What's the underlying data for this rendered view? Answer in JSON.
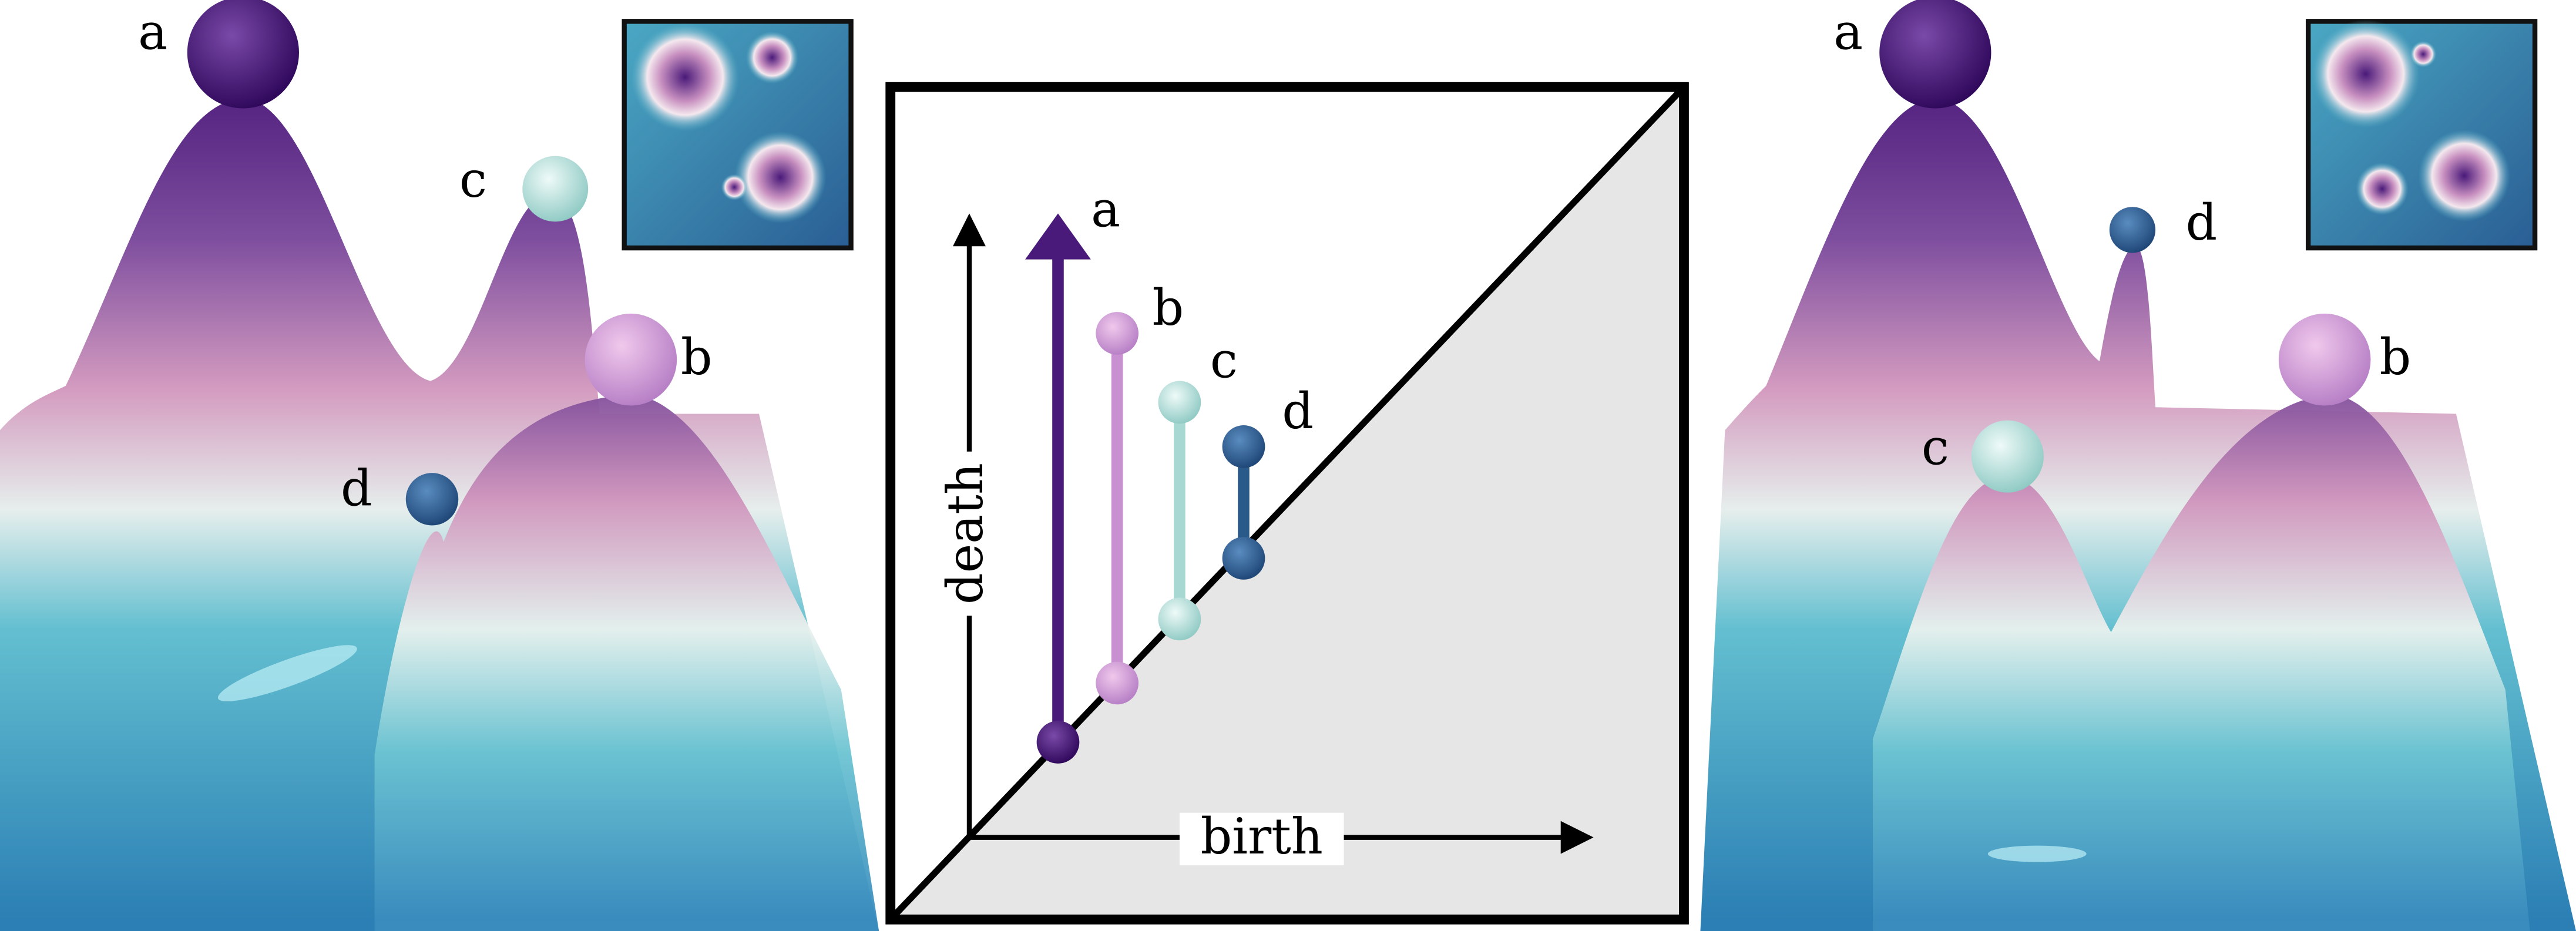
{
  "left_terrain": {
    "peak_labels": [
      "a",
      "c",
      "b",
      "d"
    ]
  },
  "persistence_diagram": {
    "y_axis_label": "death",
    "x_axis_label": "birth",
    "pair_labels": [
      "a",
      "b",
      "c",
      "d"
    ]
  },
  "right_terrain": {
    "peak_labels": [
      "a",
      "d",
      "b",
      "c"
    ]
  }
}
